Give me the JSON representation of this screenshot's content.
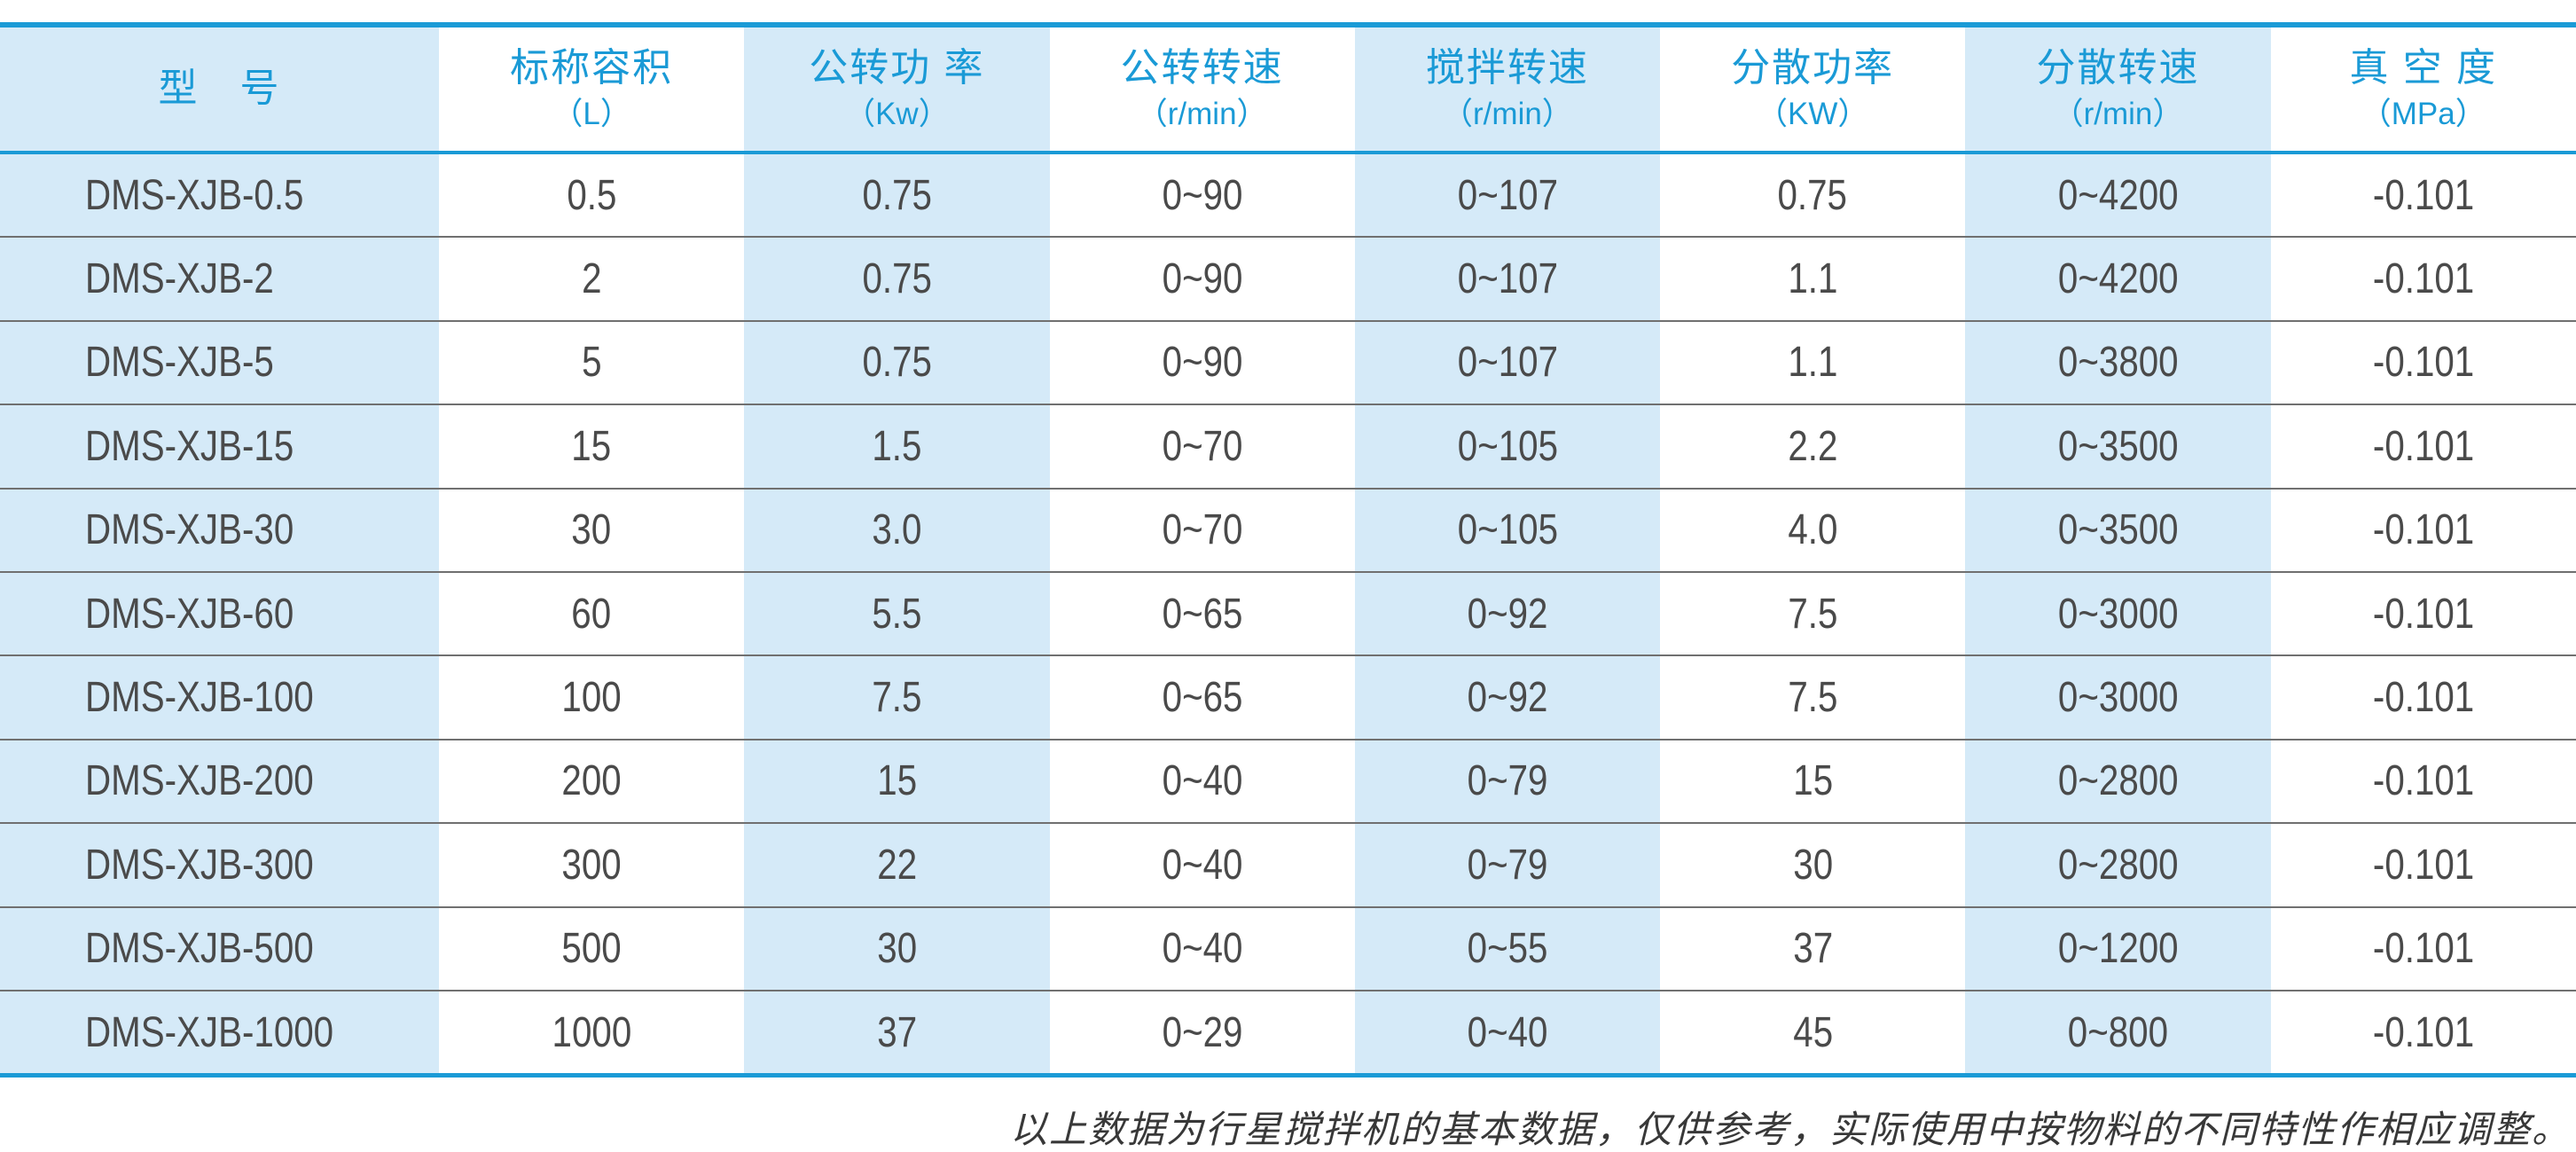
{
  "colors": {
    "accent_blue": "#1a9ad6",
    "column_stripe_blue": "#d5eaf8",
    "body_text": "#4a4a4a",
    "row_separator": "#707070",
    "footer_text": "#383838"
  },
  "table": {
    "columns": [
      {
        "title": "型　号",
        "unit": ""
      },
      {
        "title": "标称容积",
        "unit": "（L）"
      },
      {
        "title": "公转功 率",
        "unit": "（Kw）"
      },
      {
        "title": "公转转速",
        "unit": "（r/min）"
      },
      {
        "title": "搅拌转速",
        "unit": "（r/min）"
      },
      {
        "title": "分散功率",
        "unit": "（KW）"
      },
      {
        "title": "分散转速",
        "unit": "（r/min）"
      },
      {
        "title": "真 空 度",
        "unit": "（MPa）"
      }
    ],
    "rows": [
      [
        "DMS-XJB-0.5",
        "0.5",
        "0.75",
        "0~90",
        "0~107",
        "0.75",
        "0~4200",
        "-0.101"
      ],
      [
        "DMS-XJB-2",
        "2",
        "0.75",
        "0~90",
        "0~107",
        "1.1",
        "0~4200",
        "-0.101"
      ],
      [
        "DMS-XJB-5",
        "5",
        "0.75",
        "0~90",
        "0~107",
        "1.1",
        "0~3800",
        "-0.101"
      ],
      [
        "DMS-XJB-15",
        "15",
        "1.5",
        "0~70",
        "0~105",
        "2.2",
        "0~3500",
        "-0.101"
      ],
      [
        "DMS-XJB-30",
        "30",
        "3.0",
        "0~70",
        "0~105",
        "4.0",
        "0~3500",
        "-0.101"
      ],
      [
        "DMS-XJB-60",
        "60",
        "5.5",
        "0~65",
        "0~92",
        "7.5",
        "0~3000",
        "-0.101"
      ],
      [
        "DMS-XJB-100",
        "100",
        "7.5",
        "0~65",
        "0~92",
        "7.5",
        "0~3000",
        "-0.101"
      ],
      [
        "DMS-XJB-200",
        "200",
        "15",
        "0~40",
        "0~79",
        "15",
        "0~2800",
        "-0.101"
      ],
      [
        "DMS-XJB-300",
        "300",
        "22",
        "0~40",
        "0~79",
        "30",
        "0~2800",
        "-0.101"
      ],
      [
        "DMS-XJB-500",
        "500",
        "30",
        "0~40",
        "0~55",
        "37",
        "0~1200",
        "-0.101"
      ],
      [
        "DMS-XJB-1000",
        "1000",
        "37",
        "0~29",
        "0~40",
        "45",
        "0~800",
        "-0.101"
      ]
    ]
  },
  "footer": {
    "note": "以上数据为行星搅拌机的基本数据，仅供参考，实际使用中按物料的不同特性作相应调整。"
  }
}
